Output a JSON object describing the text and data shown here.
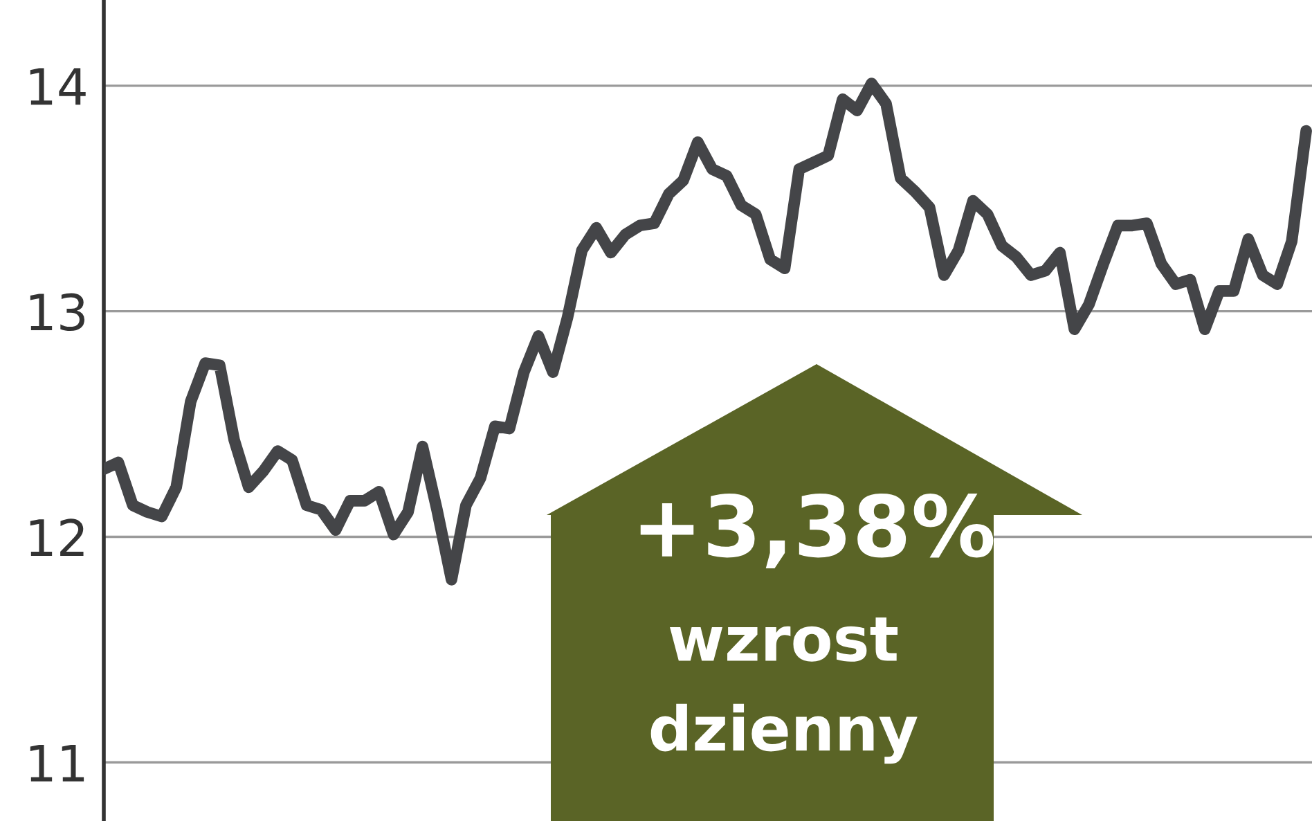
{
  "chart_data": {
    "type": "line",
    "categories": [
      null,
      null,
      null,
      null,
      null,
      null,
      null,
      null,
      null,
      null,
      null,
      null,
      null,
      null,
      null,
      null,
      null,
      null,
      null,
      null,
      null,
      null,
      null,
      null,
      null,
      null,
      null,
      null,
      null,
      null,
      null,
      null,
      null,
      null,
      null,
      null,
      null,
      null,
      null,
      null,
      null,
      null,
      null,
      null,
      null,
      null,
      null,
      null,
      null,
      null,
      null,
      null,
      null,
      null,
      null,
      null,
      null,
      null,
      null,
      null,
      null,
      null,
      null,
      null,
      null,
      null,
      null,
      null,
      null,
      null,
      null,
      null,
      null,
      null,
      null,
      null,
      null,
      null,
      null,
      null,
      null,
      null,
      null,
      null
    ],
    "series": [
      {
        "color": "#444548",
        "values": [
          12.3,
          12.33,
          12.14,
          12.11,
          12.09,
          12.22,
          12.6,
          12.77,
          12.76,
          12.43,
          12.22,
          12.29,
          12.38,
          12.34,
          12.14,
          12.12,
          12.03,
          12.16,
          12.16,
          12.2,
          12.01,
          12.11,
          12.4,
          12.12,
          11.81,
          12.14,
          12.26,
          12.49,
          12.48,
          12.73,
          12.89,
          12.73,
          12.97,
          13.27,
          13.37,
          13.26,
          13.34,
          13.38,
          13.39,
          13.52,
          13.58,
          13.75,
          13.63,
          13.6,
          13.47,
          13.43,
          13.23,
          13.19,
          13.63,
          13.66,
          13.69,
          13.94,
          13.89,
          14.01,
          13.92,
          13.59,
          13.53,
          13.46,
          13.16,
          13.27,
          13.49,
          13.43,
          13.29,
          13.24,
          13.16,
          13.18,
          13.26,
          12.92,
          13.03,
          13.21,
          13.38,
          13.38,
          13.39,
          13.21,
          13.12,
          13.14,
          12.92,
          13.09,
          13.09,
          13.32,
          13.16,
          13.12,
          13.31,
          13.8
        ]
      }
    ],
    "ylim": [
      10.74,
      14.38
    ],
    "yticks": [
      11,
      12,
      13,
      14
    ],
    "grid": "y",
    "marker": "none",
    "line_style": "solid",
    "annotations": [
      "+3,38%",
      "wzrost",
      "dzienny"
    ]
  }
}
